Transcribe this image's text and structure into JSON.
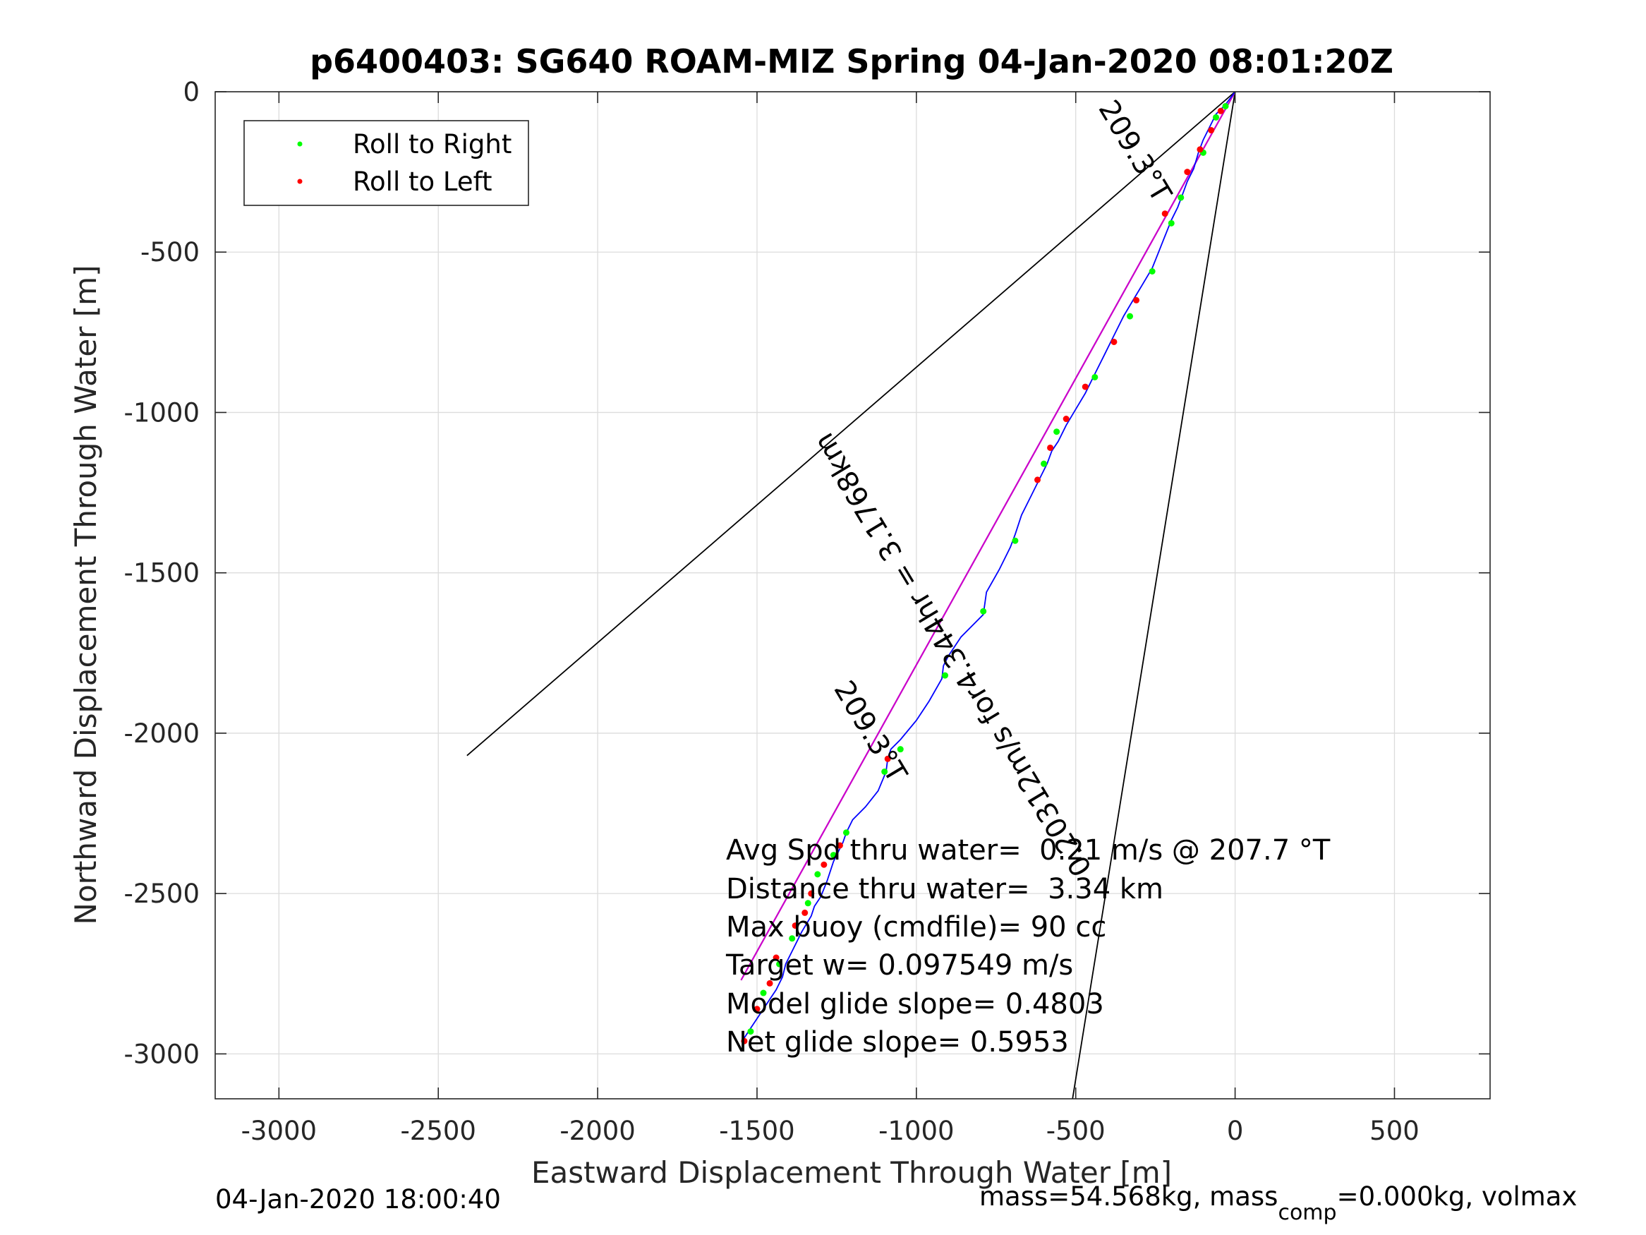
{
  "chart_data": {
    "type": "line",
    "title": "p6400403: SG640 ROAM-MIZ Spring 04-Jan-2020 08:01:20Z",
    "xlabel": "Eastward Displacement Through Water [m]",
    "ylabel": "Northward Displacement Through Water [m]",
    "xlim": [
      -3200,
      800
    ],
    "ylim": [
      -3140,
      0
    ],
    "xticks": [
      -3000,
      -2500,
      -2000,
      -1500,
      -1000,
      -500,
      0,
      500
    ],
    "yticks": [
      0,
      -500,
      -1000,
      -1500,
      -2000,
      -2500,
      -3000
    ],
    "xtick_labels": [
      "-3000",
      "-2500",
      "-2000",
      "-1500",
      "-1000",
      "-500",
      "0",
      "500"
    ],
    "ytick_labels": [
      "0",
      "-500",
      "-1000",
      "-1500",
      "-2000",
      "-2500",
      "-3000"
    ],
    "grid": true,
    "legend_position": "top-left",
    "legend": [
      {
        "label": "Roll to Right",
        "color": "#00ff00"
      },
      {
        "label": "Roll to Left",
        "color": "#ff0000"
      }
    ],
    "colors": {
      "track": "#0000ff",
      "heading_line": "#cc00cc",
      "guide_lines": "#000000"
    },
    "track": {
      "x": [
        0,
        -30,
        -60,
        -80,
        -100,
        -115,
        -130,
        -150,
        -165,
        -180,
        -200,
        -220,
        -240,
        -260,
        -290,
        -320,
        -350,
        -380,
        -410,
        -440,
        -470,
        -500,
        -530,
        -555,
        -575,
        -590,
        -610,
        -640,
        -670,
        -690,
        -705,
        -740,
        -780,
        -790,
        -860,
        -900,
        -915,
        -920,
        -960,
        -1000,
        -1050,
        -1080,
        -1090,
        -1095,
        -1120,
        -1160,
        -1200,
        -1220,
        -1230,
        -1240,
        -1250,
        -1260,
        -1270,
        -1280,
        -1300,
        -1320,
        -1330,
        -1360,
        -1390,
        -1410,
        -1420,
        -1440,
        -1460,
        -1480,
        -1500,
        -1520,
        -1540
      ],
      "y": [
        0,
        -40,
        -70,
        -110,
        -150,
        -190,
        -240,
        -280,
        -320,
        -360,
        -400,
        -450,
        -500,
        -550,
        -600,
        -650,
        -700,
        -760,
        -820,
        -880,
        -940,
        -990,
        -1040,
        -1090,
        -1120,
        -1160,
        -1200,
        -1260,
        -1320,
        -1380,
        -1420,
        -1490,
        -1560,
        -1630,
        -1700,
        -1760,
        -1790,
        -1830,
        -1900,
        -1960,
        -2020,
        -2050,
        -2080,
        -2120,
        -2180,
        -2230,
        -2270,
        -2310,
        -2340,
        -2360,
        -2380,
        -2400,
        -2430,
        -2460,
        -2510,
        -2540,
        -2570,
        -2620,
        -2680,
        -2720,
        -2760,
        -2800,
        -2830,
        -2860,
        -2890,
        -2920,
        -2950
      ]
    },
    "roll_right_points": {
      "x": [
        -30,
        -60,
        -100,
        -170,
        -200,
        -260,
        -330,
        -440,
        -560,
        -600,
        -690,
        -790,
        -910,
        -1050,
        -1100,
        -1220,
        -1260,
        -1310,
        -1340,
        -1390,
        -1430,
        -1480,
        -1520
      ],
      "y": [
        -45,
        -80,
        -190,
        -330,
        -410,
        -560,
        -700,
        -890,
        -1060,
        -1160,
        -1400,
        -1620,
        -1820,
        -2050,
        -2120,
        -2310,
        -2380,
        -2440,
        -2530,
        -2640,
        -2720,
        -2810,
        -2930
      ]
    },
    "roll_left_points": {
      "x": [
        -45,
        -75,
        -110,
        -150,
        -220,
        -310,
        -380,
        -470,
        -530,
        -580,
        -620,
        -1090,
        -1240,
        -1290,
        -1330,
        -1350,
        -1380,
        -1440,
        -1460,
        -1500,
        -1540
      ],
      "y": [
        -60,
        -120,
        -180,
        -250,
        -380,
        -650,
        -780,
        -920,
        -1020,
        -1110,
        -1210,
        -2080,
        -2350,
        -2410,
        -2500,
        -2560,
        -2600,
        -2700,
        -2780,
        -2860,
        -2960
      ]
    },
    "heading_line": {
      "x": [
        0,
        -1550
      ],
      "y": [
        0,
        -2770
      ]
    },
    "guide_lines": [
      {
        "x": [
          0,
          -2410
        ],
        "y": [
          0,
          -2070
        ]
      },
      {
        "x": [
          0,
          -1550
        ],
        "y": [
          0,
          -2770
        ]
      },
      {
        "x": [
          0,
          -510
        ],
        "y": [
          0,
          -3140
        ]
      }
    ],
    "annotations": [
      {
        "text": "209.3°T",
        "x": -340,
        "y": -200,
        "rotation": 59
      },
      {
        "text": "0.20312m/s for4.344hr = 3.1768km",
        "x": -860,
        "y": -1740,
        "rotation": -121
      },
      {
        "text": "209.3°T",
        "x": -1170,
        "y": -2010,
        "rotation": 59
      }
    ],
    "stats": [
      "Avg Spd thru water=  0.21 m/s @ 207.7 °T",
      "Distance thru water=  3.34 km",
      "Max buoy (cmdfile)= 90 cc",
      "Target w= 0.097549 m/s",
      "Model glide slope= 0.4803",
      "Net glide slope= 0.5953"
    ]
  },
  "footer": {
    "timestamp": "04-Jan-2020 18:00:40",
    "mass_prefix": "mass=54.568kg, mass",
    "mass_subscript": "comp",
    "mass_suffix": "=0.000kg, volmax"
  }
}
